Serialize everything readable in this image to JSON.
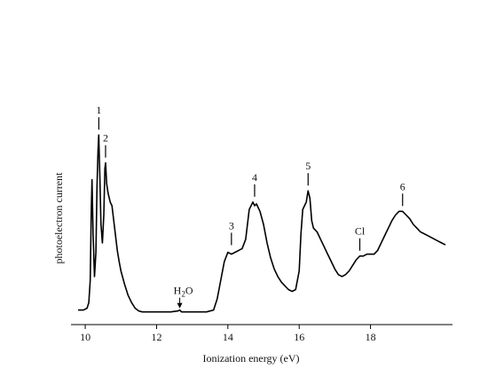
{
  "chart_data": {
    "type": "line",
    "title": "",
    "xlabel": "Ionization energy (eV)",
    "ylabel": "photoelectron current",
    "xlim": [
      9.6,
      20.3
    ],
    "ylim": [
      0,
      1
    ],
    "xticks": [
      10,
      12,
      14,
      16,
      18
    ],
    "grid": false,
    "legend": "none",
    "series": [
      {
        "values_xy": [
          [
            9.8,
            0.04
          ],
          [
            9.95,
            0.04
          ],
          [
            10.05,
            0.05
          ],
          [
            10.1,
            0.08
          ],
          [
            10.14,
            0.2
          ],
          [
            10.17,
            0.58
          ],
          [
            10.19,
            0.74
          ],
          [
            10.22,
            0.45
          ],
          [
            10.26,
            0.22
          ],
          [
            10.3,
            0.35
          ],
          [
            10.33,
            0.7
          ],
          [
            10.36,
            0.9
          ],
          [
            10.38,
            0.98
          ],
          [
            10.41,
            0.75
          ],
          [
            10.44,
            0.5
          ],
          [
            10.48,
            0.4
          ],
          [
            10.52,
            0.55
          ],
          [
            10.55,
            0.8
          ],
          [
            10.57,
            0.83
          ],
          [
            10.6,
            0.72
          ],
          [
            10.63,
            0.68
          ],
          [
            10.65,
            0.66
          ],
          [
            10.7,
            0.62
          ],
          [
            10.75,
            0.6
          ],
          [
            10.8,
            0.52
          ],
          [
            10.85,
            0.44
          ],
          [
            10.9,
            0.36
          ],
          [
            10.95,
            0.3
          ],
          [
            11.0,
            0.25
          ],
          [
            11.1,
            0.18
          ],
          [
            11.2,
            0.12
          ],
          [
            11.3,
            0.08
          ],
          [
            11.4,
            0.05
          ],
          [
            11.5,
            0.035
          ],
          [
            11.6,
            0.03
          ],
          [
            11.8,
            0.03
          ],
          [
            12.0,
            0.03
          ],
          [
            12.4,
            0.03
          ],
          [
            12.6,
            0.035
          ],
          [
            12.65,
            0.04
          ],
          [
            12.7,
            0.03
          ],
          [
            13.0,
            0.03
          ],
          [
            13.4,
            0.03
          ],
          [
            13.6,
            0.04
          ],
          [
            13.7,
            0.1
          ],
          [
            13.8,
            0.2
          ],
          [
            13.9,
            0.3
          ],
          [
            14.0,
            0.35
          ],
          [
            14.1,
            0.34
          ],
          [
            14.2,
            0.35
          ],
          [
            14.3,
            0.36
          ],
          [
            14.4,
            0.37
          ],
          [
            14.5,
            0.42
          ],
          [
            14.6,
            0.58
          ],
          [
            14.7,
            0.62
          ],
          [
            14.75,
            0.6
          ],
          [
            14.8,
            0.61
          ],
          [
            14.9,
            0.57
          ],
          [
            15.0,
            0.5
          ],
          [
            15.1,
            0.4
          ],
          [
            15.2,
            0.32
          ],
          [
            15.3,
            0.26
          ],
          [
            15.4,
            0.22
          ],
          [
            15.5,
            0.19
          ],
          [
            15.6,
            0.17
          ],
          [
            15.7,
            0.15
          ],
          [
            15.8,
            0.14
          ],
          [
            15.9,
            0.15
          ],
          [
            16.0,
            0.25
          ],
          [
            16.05,
            0.45
          ],
          [
            16.1,
            0.58
          ],
          [
            16.15,
            0.6
          ],
          [
            16.2,
            0.62
          ],
          [
            16.25,
            0.68
          ],
          [
            16.3,
            0.64
          ],
          [
            16.35,
            0.52
          ],
          [
            16.4,
            0.48
          ],
          [
            16.5,
            0.46
          ],
          [
            16.6,
            0.42
          ],
          [
            16.7,
            0.38
          ],
          [
            16.8,
            0.34
          ],
          [
            16.9,
            0.3
          ],
          [
            17.0,
            0.26
          ],
          [
            17.1,
            0.23
          ],
          [
            17.2,
            0.22
          ],
          [
            17.3,
            0.23
          ],
          [
            17.4,
            0.25
          ],
          [
            17.5,
            0.28
          ],
          [
            17.6,
            0.31
          ],
          [
            17.7,
            0.33
          ],
          [
            17.8,
            0.33
          ],
          [
            17.9,
            0.34
          ],
          [
            18.0,
            0.34
          ],
          [
            18.1,
            0.34
          ],
          [
            18.2,
            0.36
          ],
          [
            18.3,
            0.4
          ],
          [
            18.4,
            0.44
          ],
          [
            18.5,
            0.48
          ],
          [
            18.6,
            0.52
          ],
          [
            18.7,
            0.55
          ],
          [
            18.8,
            0.57
          ],
          [
            18.9,
            0.57
          ],
          [
            19.0,
            0.55
          ],
          [
            19.1,
            0.53
          ],
          [
            19.2,
            0.5
          ],
          [
            19.3,
            0.48
          ],
          [
            19.4,
            0.46
          ],
          [
            19.5,
            0.45
          ],
          [
            19.6,
            0.44
          ],
          [
            19.7,
            0.43
          ],
          [
            19.8,
            0.42
          ],
          [
            19.9,
            0.41
          ],
          [
            20.0,
            0.4
          ],
          [
            20.1,
            0.39
          ]
        ]
      }
    ],
    "annotations": [
      {
        "label": "1",
        "x": 10.38,
        "y": 0.98,
        "kind": "tick"
      },
      {
        "label": "2",
        "x": 10.57,
        "y": 0.83,
        "kind": "tick"
      },
      {
        "label": "3",
        "x": 14.1,
        "y": 0.36,
        "kind": "tick"
      },
      {
        "label": "4",
        "x": 14.75,
        "y": 0.62,
        "kind": "tick"
      },
      {
        "label": "5",
        "x": 16.25,
        "y": 0.68,
        "kind": "tick"
      },
      {
        "label": "Cl",
        "x": 17.7,
        "y": 0.33,
        "kind": "tick"
      },
      {
        "label": "6",
        "x": 18.9,
        "y": 0.57,
        "kind": "tick"
      },
      {
        "label": "H",
        "sub": "2",
        "suffix": "O",
        "x": 12.65,
        "y": 0.04,
        "kind": "arrow"
      }
    ]
  }
}
